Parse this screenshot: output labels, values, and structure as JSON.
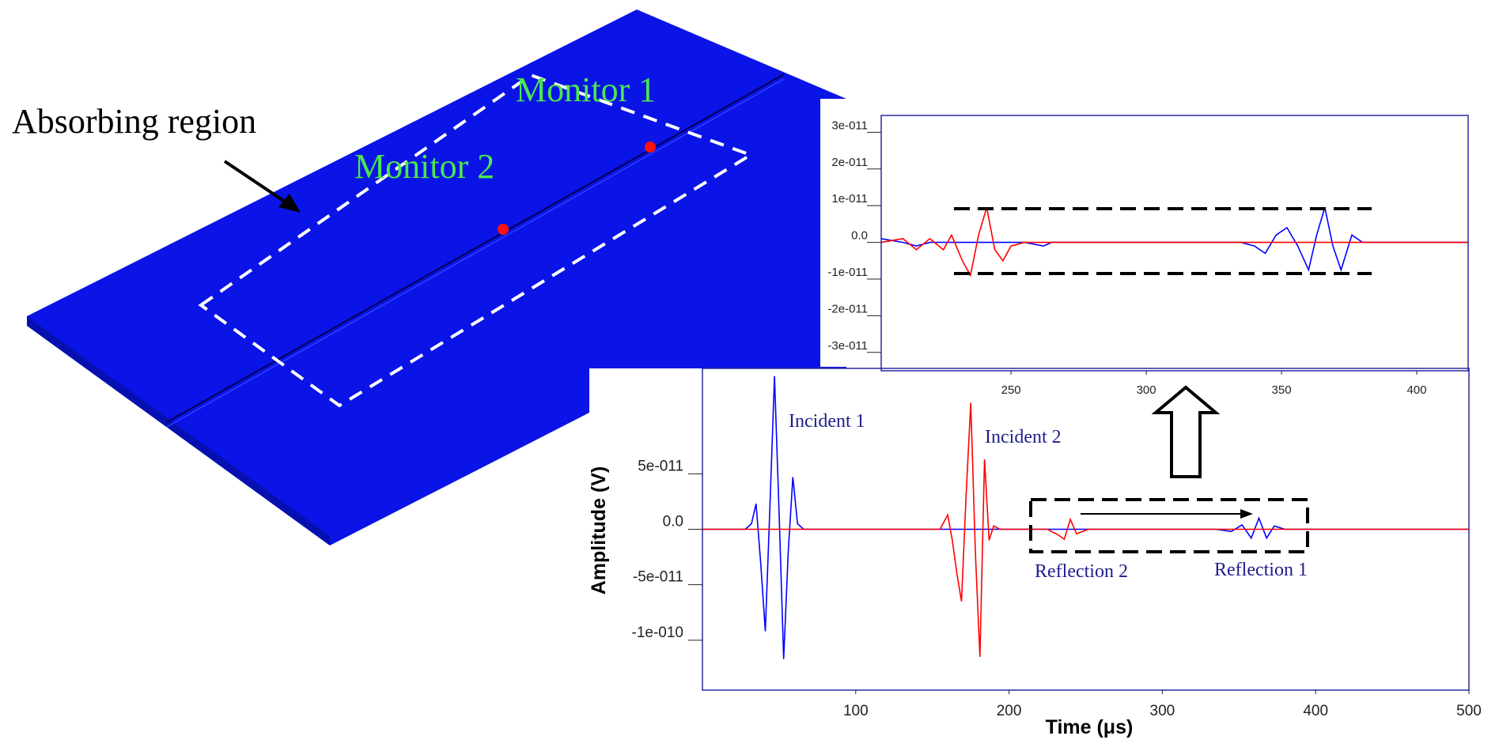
{
  "illustration": {
    "labels": [
      "Absorbing region",
      "Monitor 1",
      "Monitor 2"
    ]
  },
  "chart_data": [
    {
      "type": "line",
      "xlabel": "Time (μs)",
      "ylabel": "Amplitude (V)",
      "xlim": [
        0,
        500
      ],
      "xticks": [
        100,
        200,
        300,
        400,
        500
      ],
      "ylim": [
        -1.45e-10,
        1.45e-10
      ],
      "yticks": [
        {
          "value": -1e-10,
          "label": "-1e-010"
        },
        {
          "value": -5e-11,
          "label": "-5e-011"
        },
        {
          "value": 0,
          "label": "0.0"
        },
        {
          "value": 5e-11,
          "label": "5e-011"
        }
      ],
      "x": [
        0,
        28,
        32,
        35,
        38,
        41,
        44,
        47,
        50,
        53,
        56,
        59,
        62,
        66,
        155,
        160,
        163,
        166,
        169,
        172,
        175,
        178,
        181,
        184,
        187,
        190,
        194,
        225,
        232,
        236,
        240,
        244,
        248,
        252,
        335,
        345,
        352,
        358,
        363,
        368,
        373,
        380,
        500
      ],
      "series": [
        {
          "color": "#0000ff",
          "values": [
            0,
            0,
            5e-12,
            2.3e-11,
            -3e-11,
            -9.2e-11,
            2e-11,
            1.38e-10,
            1.5e-11,
            -1.17e-10,
            -2e-11,
            4.7e-11,
            5e-12,
            0,
            0,
            0,
            0,
            0,
            0,
            0,
            0,
            0,
            0,
            0,
            0,
            0,
            0,
            0,
            0,
            0,
            0,
            0,
            0,
            0,
            0,
            -2e-12,
            4e-12,
            -8e-12,
            1e-11,
            -8e-12,
            3e-12,
            0,
            0
          ]
        },
        {
          "color": "#ff0000",
          "values": [
            0,
            0,
            0,
            0,
            0,
            0,
            0,
            0,
            0,
            0,
            0,
            0,
            0,
            0,
            0,
            1.3e-11,
            -1e-11,
            -4e-11,
            -6.5e-11,
            3e-11,
            1.14e-10,
            -2e-11,
            -1.15e-10,
            6.3e-11,
            -1e-11,
            3e-12,
            0,
            0,
            -5e-12,
            -9e-12,
            9e-12,
            -4e-12,
            -2e-12,
            0,
            0,
            0,
            0,
            0,
            0,
            0,
            0,
            0,
            0
          ]
        }
      ],
      "annotations": [
        "Incident 1",
        "Incident 2",
        "Reflection 2",
        "Reflection 1"
      ]
    },
    {
      "type": "line",
      "xlim": [
        202,
        419
      ],
      "xticks": [
        250,
        300,
        350,
        400
      ],
      "ylim": [
        -3.5e-11,
        3.46e-11
      ],
      "yticks": [
        {
          "value": -3e-11,
          "label": "-3e-011"
        },
        {
          "value": -2e-11,
          "label": "-2e-011"
        },
        {
          "value": -1e-11,
          "label": "-1e-011"
        },
        {
          "value": 0,
          "label": "0.0"
        },
        {
          "value": 1e-11,
          "label": "1e-011"
        },
        {
          "value": 2e-11,
          "label": "2e-011"
        },
        {
          "value": 3e-11,
          "label": "3e-011"
        }
      ],
      "x": [
        202,
        210,
        215,
        220,
        225,
        228,
        232,
        235,
        238,
        241,
        244,
        247,
        250,
        255,
        262,
        265,
        335,
        340,
        344,
        348,
        352,
        356,
        360,
        363,
        366,
        369,
        372,
        376,
        380,
        385,
        419
      ],
      "series": [
        {
          "color": "#0000ff",
          "values": [
            1e-12,
            0,
            -1e-12,
            0,
            0,
            0,
            0,
            0,
            0,
            0,
            0,
            0,
            0,
            0,
            -1e-12,
            0,
            0,
            -1e-12,
            -3e-12,
            2e-12,
            4e-12,
            -1e-12,
            -7.5e-12,
            2e-12,
            9.5e-12,
            -1e-12,
            -7.5e-12,
            2e-12,
            0,
            0,
            0
          ]
        },
        {
          "color": "#ff0000",
          "values": [
            0,
            1e-12,
            -2e-12,
            1e-12,
            -2e-12,
            2e-12,
            -5e-12,
            -9e-12,
            2e-12,
            9.5e-12,
            -2e-12,
            -5e-12,
            -1e-12,
            0,
            0,
            0,
            0,
            0,
            0,
            0,
            0,
            0,
            0,
            0,
            0,
            0,
            0,
            0,
            0,
            0,
            0
          ]
        }
      ]
    }
  ]
}
